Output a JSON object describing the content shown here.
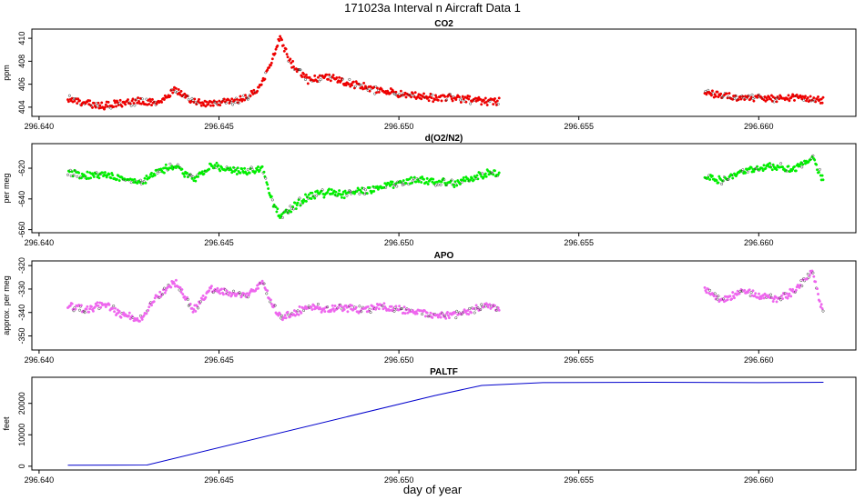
{
  "figure": {
    "title": "171023a   Interval n Aircraft Data 1",
    "xlabel": "day of year"
  },
  "chart_data": [
    {
      "type": "scatter",
      "title": "CO2",
      "ylabel": "ppm",
      "color": "#ee0000",
      "xlim": [
        296.6398,
        296.6627
      ],
      "ylim": [
        403.2,
        410.8
      ],
      "xticks": [
        296.64,
        296.645,
        296.65,
        296.655,
        296.66
      ],
      "xtick_labels": [
        "296.640",
        "296.645",
        "296.650",
        "296.655",
        "296.660"
      ],
      "yticks": [
        404,
        406,
        408,
        410
      ],
      "ytick_labels": [
        "404",
        "406",
        "408",
        "410"
      ],
      "series": [
        {
          "x": [
            296.6408,
            296.6413,
            296.6418,
            296.6423,
            296.6428,
            296.6433,
            296.6438,
            296.6443,
            296.6448,
            296.6453,
            296.6458,
            296.6462,
            296.6465,
            296.6467,
            296.647,
            296.6475,
            296.648,
            296.6485,
            296.649,
            296.6495,
            296.65,
            296.6505,
            296.651,
            296.6515,
            296.652,
            296.6525,
            296.6528,
            296.6585,
            296.659,
            296.6595,
            296.66,
            296.6605,
            296.661,
            296.6615,
            296.6618
          ],
          "y": [
            404.8,
            404.3,
            404.1,
            404.4,
            404.5,
            404.4,
            405.5,
            404.5,
            404.3,
            404.5,
            404.8,
            406.0,
            408.3,
            410.0,
            407.8,
            406.3,
            406.6,
            406.2,
            405.8,
            405.4,
            405.2,
            405.0,
            404.8,
            404.9,
            404.6,
            404.4,
            404.5,
            405.3,
            405.0,
            404.8,
            404.9,
            404.7,
            404.8,
            404.7,
            404.6
          ]
        }
      ]
    },
    {
      "type": "scatter",
      "title": "d(O2/N2)",
      "ylabel": "per meg",
      "color": "#00ee00",
      "xlim": [
        296.6398,
        296.6627
      ],
      "ylim": [
        -662,
        -604
      ],
      "xticks": [
        296.64,
        296.645,
        296.65,
        296.655,
        296.66
      ],
      "xtick_labels": [
        "296.640",
        "296.645",
        "296.650",
        "296.655",
        "296.660"
      ],
      "yticks": [
        -620,
        -640,
        -660
      ],
      "ytick_labels": [
        "-620",
        "-640",
        "-660"
      ],
      "series": [
        {
          "x": [
            296.6408,
            296.6413,
            296.6418,
            296.6423,
            296.6428,
            296.6433,
            296.6438,
            296.6443,
            296.6448,
            296.6453,
            296.6458,
            296.6462,
            296.6465,
            296.6467,
            296.647,
            296.6475,
            296.648,
            296.6485,
            296.649,
            296.6495,
            296.65,
            296.6505,
            296.651,
            296.6515,
            296.652,
            296.6525,
            296.6528,
            296.6585,
            296.659,
            296.6595,
            296.66,
            296.6605,
            296.661,
            296.6615,
            296.6618
          ],
          "y": [
            -623,
            -625,
            -624,
            -626,
            -630,
            -622,
            -618,
            -628,
            -618,
            -621,
            -622,
            -620,
            -643,
            -652,
            -646,
            -638,
            -636,
            -637,
            -635,
            -633,
            -630,
            -628,
            -629,
            -630,
            -627,
            -623,
            -624,
            -625,
            -628,
            -622,
            -620,
            -619,
            -621,
            -612,
            -629
          ]
        }
      ]
    },
    {
      "type": "scatter",
      "title": "APO",
      "ylabel": "approx. per meg",
      "color": "#ee66ee",
      "xlim": [
        296.6398,
        296.6627
      ],
      "ylim": [
        -356,
        -318
      ],
      "xticks": [
        296.64,
        296.645,
        296.65,
        296.655,
        296.66
      ],
      "xtick_labels": [
        "296.640",
        "296.645",
        "296.650",
        "296.655",
        "296.660"
      ],
      "yticks": [
        -320,
        -330,
        -340,
        -350
      ],
      "ytick_labels": [
        "-320",
        "-330",
        "-340",
        "-350"
      ],
      "series": [
        {
          "x": [
            296.6408,
            296.6413,
            296.6418,
            296.6423,
            296.6428,
            296.6433,
            296.6438,
            296.6443,
            296.6448,
            296.6453,
            296.6458,
            296.6462,
            296.6465,
            296.6467,
            296.647,
            296.6475,
            296.648,
            296.6485,
            296.649,
            296.6495,
            296.65,
            296.6505,
            296.651,
            296.6515,
            296.652,
            296.6525,
            296.6528,
            296.6585,
            296.659,
            296.6595,
            296.66,
            296.6605,
            296.661,
            296.6615,
            296.6618
          ],
          "y": [
            -337,
            -339,
            -336,
            -341,
            -343,
            -333,
            -327,
            -339,
            -330,
            -332,
            -333,
            -327,
            -337,
            -342,
            -341,
            -337,
            -339,
            -338,
            -339,
            -337,
            -339,
            -340,
            -341,
            -341,
            -339,
            -337,
            -339,
            -330,
            -335,
            -331,
            -333,
            -334,
            -331,
            -322,
            -341
          ]
        }
      ]
    },
    {
      "type": "line",
      "title": "PALTF",
      "ylabel": "feet",
      "color": "#0000cc",
      "xlim": [
        296.6398,
        296.6627
      ],
      "ylim": [
        -1200,
        28300
      ],
      "xticks": [
        296.64,
        296.645,
        296.65,
        296.655,
        296.66
      ],
      "xtick_labels": [
        "296.640",
        "296.645",
        "296.650",
        "296.655",
        "296.660"
      ],
      "yticks": [
        0,
        10000,
        20000
      ],
      "ytick_labels": [
        "0",
        "10000",
        "20000"
      ],
      "series": [
        {
          "x": [
            296.6408,
            296.643,
            296.651,
            296.6523,
            296.654,
            296.657,
            296.66,
            296.6618
          ],
          "y": [
            300,
            400,
            22500,
            25700,
            26600,
            26700,
            26600,
            26700
          ]
        }
      ]
    }
  ]
}
